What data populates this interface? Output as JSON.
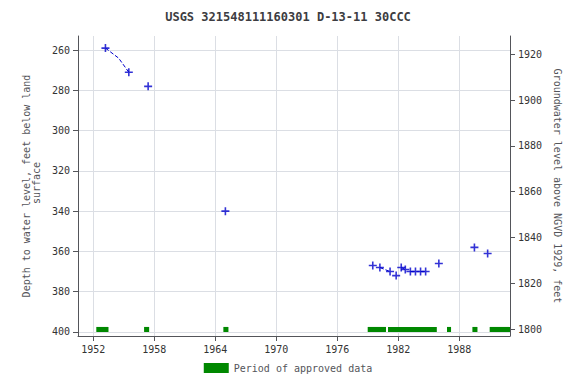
{
  "chart_data": {
    "type": "scatter",
    "title": "USGS 321548111160301 D-13-11 30CCC",
    "ylabel": "Depth to water level, feet below land\n surface",
    "y2label": "Groundwater level above NGVD 1929, feet",
    "xlim": [
      1950.5,
      1993
    ],
    "xticks": [
      1952,
      1958,
      1964,
      1970,
      1976,
      1982,
      1988
    ],
    "ylim": [
      402,
      253
    ],
    "yticks": [
      260,
      280,
      300,
      320,
      340,
      360,
      380,
      400
    ],
    "y2lim": [
      1797,
      1928
    ],
    "y2ticks": [
      1800,
      1820,
      1840,
      1860,
      1880,
      1900,
      1920
    ],
    "grid": true,
    "legend": "bottom",
    "series": [
      {
        "type": "scatter",
        "color": "#0000cc",
        "marker": "+",
        "x": [
          1953.2,
          1955.5,
          1957.4,
          1965.0,
          1979.5,
          1980.2,
          1981.2,
          1981.8,
          1982.3,
          1982.7,
          1983.2,
          1983.7,
          1984.2,
          1984.7,
          1986.0,
          1989.5,
          1990.8
        ],
        "values": [
          259,
          271,
          278,
          340,
          367,
          368,
          370,
          372,
          368,
          369,
          370,
          370,
          370,
          370,
          366,
          358,
          361
        ]
      },
      {
        "type": "line",
        "color": "#0000cc",
        "line_style": "dashed",
        "x": [
          1953.2,
          1954.5,
          1955.5
        ],
        "values": [
          259,
          264,
          271
        ]
      },
      {
        "type": "line",
        "color": "#0000cc",
        "line_style": "dashed",
        "x": [
          1980.2,
          1981.2
        ],
        "values": [
          368,
          370
        ]
      },
      {
        "type": "line",
        "color": "#0000cc",
        "line_style": "dashed",
        "x": [
          1982.3,
          1982.7
        ],
        "values": [
          368,
          369
        ]
      },
      {
        "type": "line",
        "color": "#0000cc",
        "line_style": "dashed",
        "x": [
          1983.2,
          1983.7
        ],
        "values": [
          370,
          370
        ]
      },
      {
        "type": "line",
        "color": "#0000cc",
        "line_style": "dashed",
        "x": [
          1984.2,
          1984.7
        ],
        "values": [
          370,
          370
        ]
      },
      {
        "type": "bar",
        "name": "Period of approved data",
        "color": "#008800",
        "ranges": [
          [
            1952.3,
            1953.5
          ],
          [
            1957.0,
            1957.5
          ],
          [
            1964.8,
            1965.3
          ],
          [
            1979.0,
            1980.8
          ],
          [
            1981.0,
            1985.8
          ],
          [
            1986.8,
            1987.2
          ],
          [
            1989.3,
            1989.8
          ],
          [
            1991.0,
            1993.0
          ]
        ],
        "bar_y": 400,
        "bar_height": 2.5
      }
    ]
  }
}
